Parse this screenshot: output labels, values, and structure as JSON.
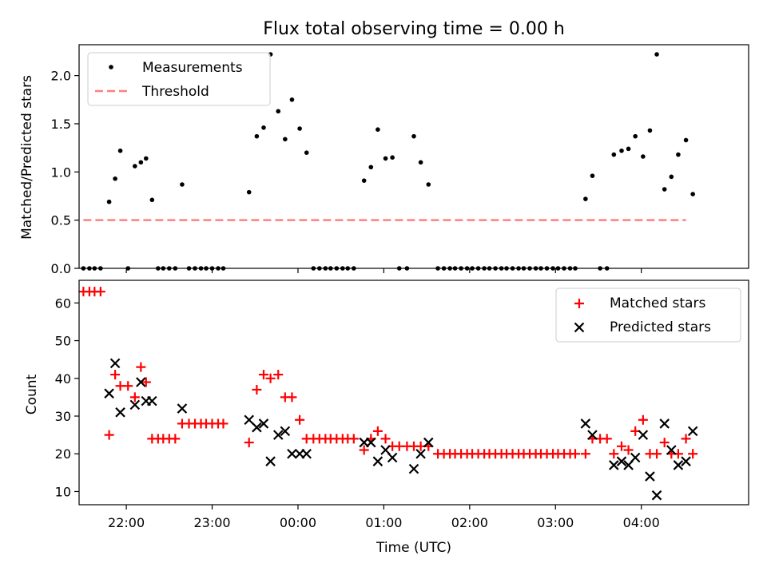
{
  "title": "Flux total observing time = 0.00 h",
  "xlabel": "Time (UTC)",
  "colors": {
    "measurement": "#000000",
    "threshold": "#ff7f7f",
    "matched": "#ff0000",
    "predicted": "#000000"
  },
  "chart_data": [
    {
      "type": "scatter",
      "ylabel": "Matched/Predicted stars",
      "x_range_hours": [
        -2.55,
        5.25
      ],
      "ylim": [
        0,
        2.32
      ],
      "yticks": [
        0.0,
        0.5,
        1.0,
        1.5,
        2.0
      ],
      "ytick_labels": [
        "0.0",
        "0.5",
        "1.0",
        "1.5",
        "2.0"
      ],
      "xticks_hours": [
        -2,
        -1,
        0,
        1,
        2,
        3,
        4
      ],
      "legend": {
        "placement": "top-left",
        "entries": [
          {
            "key": "measurements",
            "label": "Measurements"
          },
          {
            "key": "threshold",
            "label": "Threshold"
          }
        ]
      },
      "series": [
        {
          "key": "measurements",
          "name": "Measurements",
          "marker": "dot",
          "points": [
            [
              -2.5,
              0
            ],
            [
              -2.43,
              0
            ],
            [
              -2.37,
              0
            ],
            [
              -2.3,
              0
            ],
            [
              -2.2,
              0.69
            ],
            [
              -2.13,
              0.93
            ],
            [
              -2.07,
              1.22
            ],
            [
              -1.98,
              0
            ],
            [
              -1.9,
              1.06
            ],
            [
              -1.83,
              1.1
            ],
            [
              -1.77,
              1.14
            ],
            [
              -1.7,
              0.71
            ],
            [
              -1.63,
              0
            ],
            [
              -1.57,
              0
            ],
            [
              -1.5,
              0
            ],
            [
              -1.43,
              0
            ],
            [
              -1.35,
              0.87
            ],
            [
              -1.27,
              0
            ],
            [
              -1.2,
              0
            ],
            [
              -1.13,
              0
            ],
            [
              -1.07,
              0
            ],
            [
              -1.0,
              0
            ],
            [
              -0.93,
              0
            ],
            [
              -0.87,
              0
            ],
            [
              -0.57,
              0.79
            ],
            [
              -0.48,
              1.37
            ],
            [
              -0.4,
              1.46
            ],
            [
              -0.32,
              2.22
            ],
            [
              -0.23,
              1.63
            ],
            [
              -0.15,
              1.34
            ],
            [
              -0.07,
              1.75
            ],
            [
              0.02,
              1.45
            ],
            [
              0.1,
              1.2
            ],
            [
              0.18,
              0
            ],
            [
              0.25,
              0
            ],
            [
              0.32,
              0
            ],
            [
              0.38,
              0
            ],
            [
              0.45,
              0
            ],
            [
              0.52,
              0
            ],
            [
              0.58,
              0
            ],
            [
              0.65,
              0
            ],
            [
              0.77,
              0.91
            ],
            [
              0.85,
              1.05
            ],
            [
              0.93,
              1.44
            ],
            [
              1.02,
              1.14
            ],
            [
              1.1,
              1.15
            ],
            [
              1.18,
              0
            ],
            [
              1.27,
              0
            ],
            [
              1.35,
              1.37
            ],
            [
              1.43,
              1.1
            ],
            [
              1.52,
              0.87
            ],
            [
              1.63,
              0
            ],
            [
              1.7,
              0
            ],
            [
              1.77,
              0
            ],
            [
              1.83,
              0
            ],
            [
              1.9,
              0
            ],
            [
              1.97,
              0
            ],
            [
              2.03,
              0
            ],
            [
              2.1,
              0
            ],
            [
              2.17,
              0
            ],
            [
              2.23,
              0
            ],
            [
              2.3,
              0
            ],
            [
              2.37,
              0
            ],
            [
              2.43,
              0
            ],
            [
              2.5,
              0
            ],
            [
              2.57,
              0
            ],
            [
              2.63,
              0
            ],
            [
              2.7,
              0
            ],
            [
              2.77,
              0
            ],
            [
              2.83,
              0
            ],
            [
              2.9,
              0
            ],
            [
              2.97,
              0
            ],
            [
              3.03,
              0
            ],
            [
              3.1,
              0
            ],
            [
              3.17,
              0
            ],
            [
              3.23,
              0
            ],
            [
              3.35,
              0.72
            ],
            [
              3.43,
              0.96
            ],
            [
              3.52,
              0
            ],
            [
              3.6,
              0
            ],
            [
              3.68,
              1.18
            ],
            [
              3.77,
              1.22
            ],
            [
              3.85,
              1.24
            ],
            [
              3.93,
              1.37
            ],
            [
              4.02,
              1.16
            ],
            [
              4.1,
              1.43
            ],
            [
              4.18,
              2.22
            ],
            [
              4.27,
              0.82
            ],
            [
              4.35,
              0.95
            ],
            [
              4.43,
              1.18
            ],
            [
              4.52,
              1.33
            ],
            [
              4.6,
              0.77
            ]
          ]
        },
        {
          "key": "threshold",
          "name": "Threshold",
          "line": "dashed",
          "points": [
            [
              -2.5,
              0.5
            ],
            [
              4.52,
              0.5
            ]
          ]
        }
      ]
    },
    {
      "type": "scatter",
      "ylabel": "Count",
      "x_range_hours": [
        -2.55,
        5.25
      ],
      "ylim": [
        6.5,
        66
      ],
      "yticks": [
        10,
        20,
        30,
        40,
        50,
        60
      ],
      "ytick_labels": [
        "10",
        "20",
        "30",
        "40",
        "50",
        "60"
      ],
      "xticks_hours": [
        -2,
        -1,
        0,
        1,
        2,
        3,
        4
      ],
      "xtick_labels": [
        "22:00",
        "23:00",
        "00:00",
        "01:00",
        "02:00",
        "03:00",
        "04:00"
      ],
      "legend": {
        "placement": "top-right",
        "entries": [
          {
            "key": "matched",
            "label": "Matched stars"
          },
          {
            "key": "predicted",
            "label": "Predicted stars"
          }
        ]
      },
      "series": [
        {
          "key": "matched",
          "name": "Matched stars",
          "marker": "plus",
          "points": [
            [
              -2.5,
              63
            ],
            [
              -2.43,
              63
            ],
            [
              -2.37,
              63
            ],
            [
              -2.3,
              63
            ],
            [
              -2.2,
              25
            ],
            [
              -2.13,
              41
            ],
            [
              -2.07,
              38
            ],
            [
              -1.98,
              38
            ],
            [
              -1.9,
              35
            ],
            [
              -1.83,
              43
            ],
            [
              -1.77,
              39
            ],
            [
              -1.7,
              24
            ],
            [
              -1.63,
              24
            ],
            [
              -1.57,
              24
            ],
            [
              -1.5,
              24
            ],
            [
              -1.43,
              24
            ],
            [
              -1.35,
              28
            ],
            [
              -1.27,
              28
            ],
            [
              -1.2,
              28
            ],
            [
              -1.13,
              28
            ],
            [
              -1.07,
              28
            ],
            [
              -1.0,
              28
            ],
            [
              -0.93,
              28
            ],
            [
              -0.87,
              28
            ],
            [
              -0.57,
              23
            ],
            [
              -0.48,
              37
            ],
            [
              -0.4,
              41
            ],
            [
              -0.32,
              40
            ],
            [
              -0.23,
              41
            ],
            [
              -0.15,
              35
            ],
            [
              -0.07,
              35
            ],
            [
              0.02,
              29
            ],
            [
              0.1,
              24
            ],
            [
              0.18,
              24
            ],
            [
              0.25,
              24
            ],
            [
              0.32,
              24
            ],
            [
              0.38,
              24
            ],
            [
              0.45,
              24
            ],
            [
              0.52,
              24
            ],
            [
              0.58,
              24
            ],
            [
              0.65,
              24
            ],
            [
              0.77,
              21
            ],
            [
              0.85,
              24
            ],
            [
              0.93,
              26
            ],
            [
              1.02,
              24
            ],
            [
              1.1,
              22
            ],
            [
              1.18,
              22
            ],
            [
              1.27,
              22
            ],
            [
              1.35,
              22
            ],
            [
              1.43,
              22
            ],
            [
              1.52,
              22
            ],
            [
              1.63,
              20
            ],
            [
              1.7,
              20
            ],
            [
              1.77,
              20
            ],
            [
              1.83,
              20
            ],
            [
              1.9,
              20
            ],
            [
              1.97,
              20
            ],
            [
              2.03,
              20
            ],
            [
              2.1,
              20
            ],
            [
              2.17,
              20
            ],
            [
              2.23,
              20
            ],
            [
              2.3,
              20
            ],
            [
              2.37,
              20
            ],
            [
              2.43,
              20
            ],
            [
              2.5,
              20
            ],
            [
              2.57,
              20
            ],
            [
              2.63,
              20
            ],
            [
              2.7,
              20
            ],
            [
              2.77,
              20
            ],
            [
              2.83,
              20
            ],
            [
              2.9,
              20
            ],
            [
              2.97,
              20
            ],
            [
              3.03,
              20
            ],
            [
              3.1,
              20
            ],
            [
              3.17,
              20
            ],
            [
              3.23,
              20
            ],
            [
              3.35,
              20
            ],
            [
              3.43,
              24
            ],
            [
              3.52,
              24
            ],
            [
              3.6,
              24
            ],
            [
              3.68,
              20
            ],
            [
              3.77,
              22
            ],
            [
              3.85,
              21
            ],
            [
              3.93,
              26
            ],
            [
              4.02,
              29
            ],
            [
              4.1,
              20
            ],
            [
              4.18,
              20
            ],
            [
              4.27,
              23
            ],
            [
              4.35,
              20
            ],
            [
              4.43,
              20
            ],
            [
              4.52,
              24
            ],
            [
              4.6,
              20
            ]
          ]
        },
        {
          "key": "predicted",
          "name": "Predicted stars",
          "marker": "x",
          "points": [
            [
              -2.2,
              36
            ],
            [
              -2.13,
              44
            ],
            [
              -2.07,
              31
            ],
            [
              -1.9,
              33
            ],
            [
              -1.83,
              39
            ],
            [
              -1.77,
              34
            ],
            [
              -1.7,
              34
            ],
            [
              -1.35,
              32
            ],
            [
              -0.57,
              29
            ],
            [
              -0.48,
              27
            ],
            [
              -0.4,
              28
            ],
            [
              -0.32,
              18
            ],
            [
              -0.23,
              25
            ],
            [
              -0.15,
              26
            ],
            [
              -0.07,
              20
            ],
            [
              0.02,
              20
            ],
            [
              0.1,
              20
            ],
            [
              0.77,
              23
            ],
            [
              0.85,
              23
            ],
            [
              0.93,
              18
            ],
            [
              1.02,
              21
            ],
            [
              1.1,
              19
            ],
            [
              1.35,
              16
            ],
            [
              1.43,
              20
            ],
            [
              1.52,
              23
            ],
            [
              3.35,
              28
            ],
            [
              3.43,
              25
            ],
            [
              3.68,
              17
            ],
            [
              3.77,
              18
            ],
            [
              3.85,
              17
            ],
            [
              3.93,
              19
            ],
            [
              4.02,
              25
            ],
            [
              4.1,
              14
            ],
            [
              4.18,
              9
            ],
            [
              4.27,
              28
            ],
            [
              4.35,
              21
            ],
            [
              4.43,
              17
            ],
            [
              4.52,
              18
            ],
            [
              4.6,
              26
            ]
          ]
        }
      ]
    }
  ]
}
